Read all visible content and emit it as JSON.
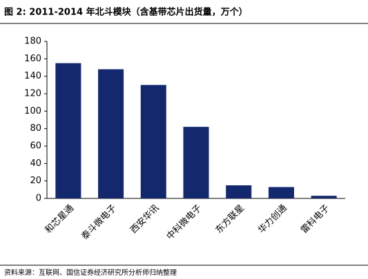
{
  "chart_data": {
    "type": "bar",
    "title": "图 2: 2011-2014 年北斗模块（含基带芯片出货量，万个）",
    "source": "资料来源：互联网、国信证券经济研究所分析师归纳整理",
    "categories": [
      "和芯星通",
      "泰斗微电子",
      "西安华讯",
      "中科微电子",
      "东方联星",
      "华力创通",
      "雷科电子"
    ],
    "values": [
      155,
      148,
      130,
      82,
      15,
      13,
      3
    ],
    "color": "#14286e",
    "ylim": [
      0,
      180
    ],
    "yticks": [
      0,
      20,
      40,
      60,
      80,
      100,
      120,
      140,
      160,
      180
    ],
    "grid": false
  }
}
